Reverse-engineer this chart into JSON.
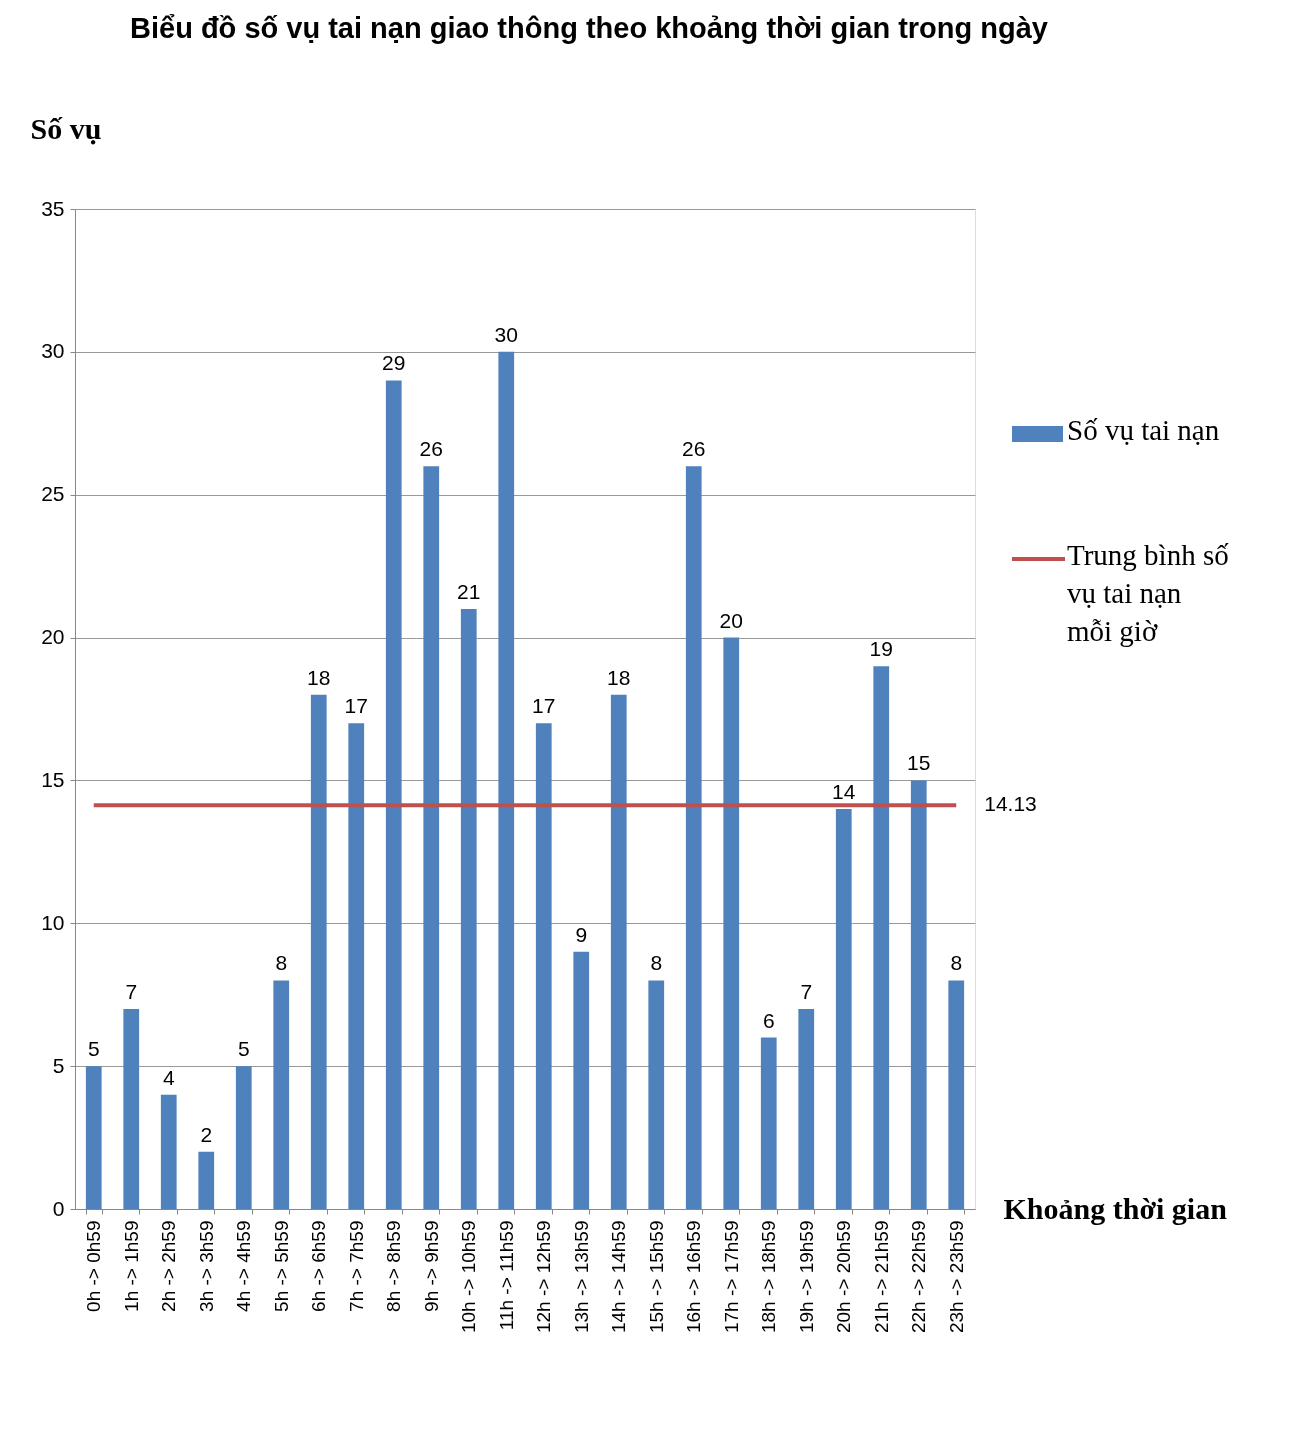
{
  "chart_data": {
    "type": "bar",
    "title": "Biểu đồ số vụ tai nạn giao thông theo khoảng thời gian trong ngày",
    "xlabel": "Khoảng thời gian",
    "ylabel": "Số vụ",
    "categories": [
      "0h -> 0h59",
      "1h -> 1h59",
      "2h -> 2h59",
      "3h -> 3h59",
      "4h -> 4h59",
      "5h -> 5h59",
      "6h -> 6h59",
      "7h -> 7h59",
      "8h -> 8h59",
      "9h -> 9h59",
      "10h -> 10h59",
      "11h -> 11h59",
      "12h -> 12h59",
      "13h -> 13h59",
      "14h -> 14h59",
      "15h -> 15h59",
      "16h -> 16h59",
      "17h -> 17h59",
      "18h -> 18h59",
      "19h -> 19h59",
      "20h -> 20h59",
      "21h -> 21h59",
      "22h -> 22h59",
      "23h -> 23h59"
    ],
    "series": [
      {
        "name": "Số vụ tai nạn",
        "color": "#4f81bd",
        "data_labels": true,
        "values": [
          5,
          7,
          4,
          2,
          5,
          8,
          18,
          17,
          29,
          26,
          21,
          30,
          17,
          9,
          18,
          8,
          26,
          20,
          6,
          7,
          14,
          19,
          15,
          8
        ]
      },
      {
        "name": "Trung bình số vụ tai nạn mỗi giờ",
        "color": "#c0504d",
        "type": "line",
        "values": [
          14.13,
          14.13,
          14.13,
          14.13,
          14.13,
          14.13,
          14.13,
          14.13,
          14.13,
          14.13,
          14.13,
          14.13,
          14.13,
          14.13,
          14.13,
          14.13,
          14.13,
          14.13,
          14.13,
          14.13,
          14.13,
          14.13,
          14.13,
          14.13
        ],
        "value_labels": [
          null,
          null,
          null,
          null,
          null,
          null,
          null,
          null,
          null,
          null,
          null,
          null,
          null,
          null,
          null,
          null,
          null,
          null,
          null,
          null,
          null,
          null,
          null,
          "14.13"
        ]
      }
    ],
    "ylim": [
      0,
      35
    ],
    "yticks": [
      0,
      5,
      10,
      15,
      20,
      25,
      30,
      35
    ],
    "grid": "y",
    "legend": "right",
    "marker": "none"
  }
}
